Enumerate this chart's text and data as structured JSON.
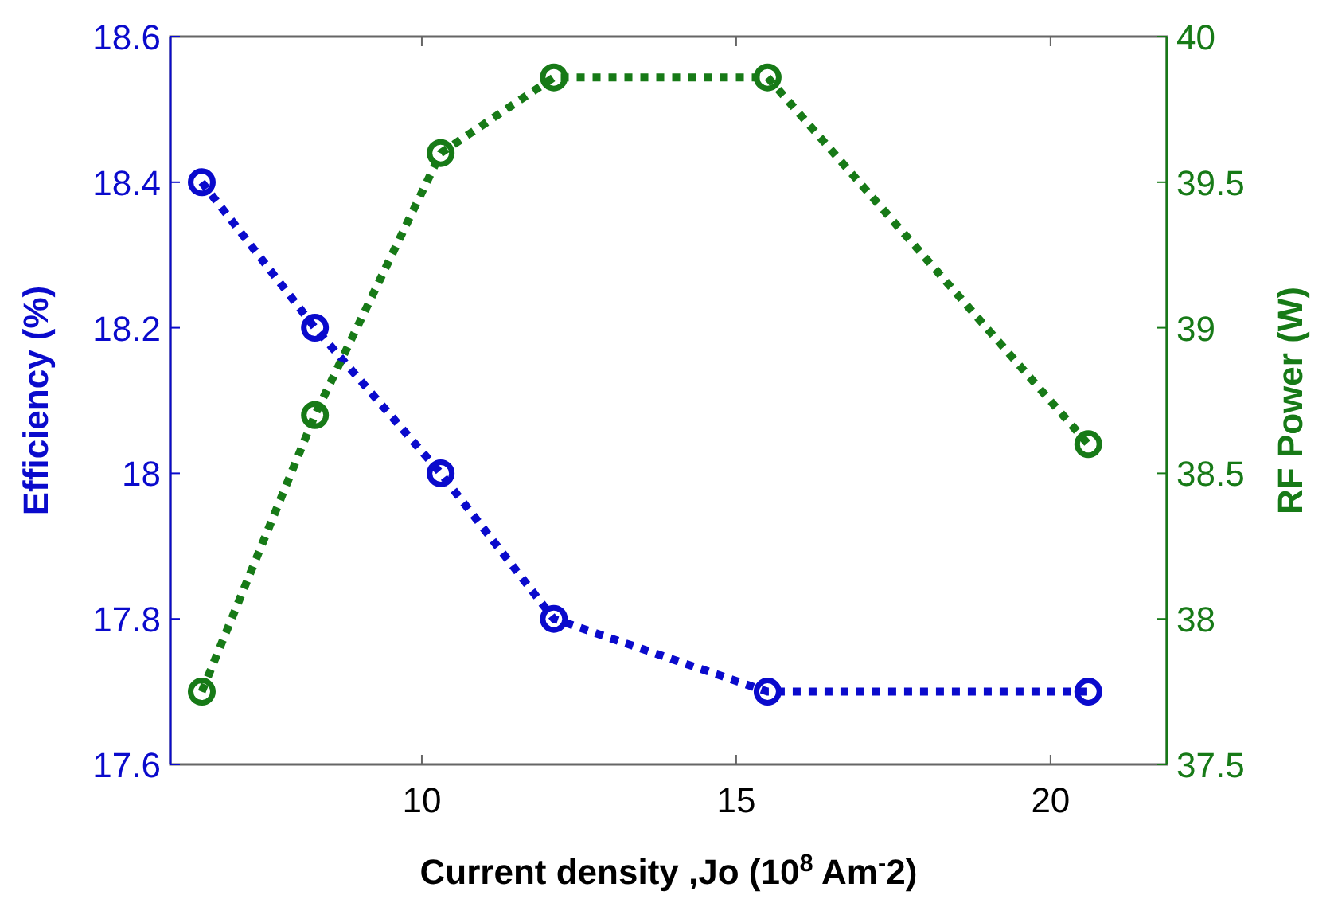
{
  "chart_data": {
    "type": "line",
    "xlabel": "Current density ,Jo (10$^{8}$ Am$^{-}$2)",
    "ylabel": "Efficiency (%)",
    "y2label": "RF Power (W)",
    "x": [
      6.5,
      8.3,
      10.3,
      12.1,
      15.5,
      20.6
    ],
    "series": [
      {
        "color": "#0a0acc",
        "values": [
          18.4,
          18.2,
          18.0,
          17.8,
          17.7,
          17.7
        ]
      },
      {
        "color": "#177a17",
        "axis": "y2",
        "values": [
          37.75,
          38.7,
          39.6,
          39.86,
          39.86,
          38.6
        ]
      }
    ],
    "xlim": [
      6,
      21.85
    ],
    "xticks": [
      10,
      15,
      20
    ],
    "ylim": [
      17.6,
      18.6
    ],
    "yticks": [
      17.6,
      17.8,
      18,
      18.2,
      18.4,
      18.6
    ],
    "y2lim": [
      37.5,
      40
    ],
    "y2ticks": [
      37.5,
      38,
      38.5,
      39,
      39.5,
      40
    ],
    "grid": false,
    "marker": "circle",
    "line_style": "dotted"
  }
}
